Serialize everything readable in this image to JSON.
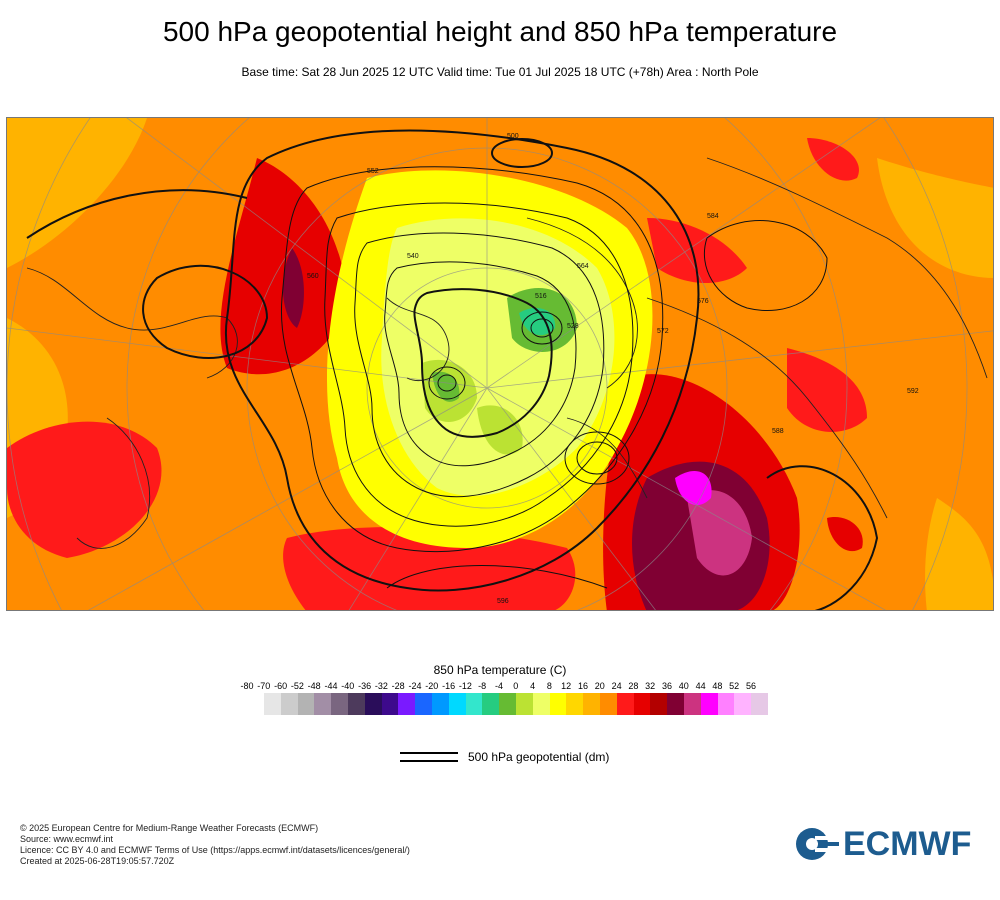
{
  "header": {
    "title": "500 hPa geopotential height and 850 hPa temperature",
    "subtitle": "Base time: Sat 28 Jun 2025 12 UTC Valid time: Tue 01 Jul 2025 18 UTC (+78h) Area : North Pole"
  },
  "map": {
    "contour_labels": [
      "500",
      "516",
      "528",
      "540",
      "552",
      "560",
      "564",
      "572",
      "576",
      "584",
      "588",
      "592",
      "596"
    ]
  },
  "legend": {
    "title": "850 hPa temperature (C)",
    "ticks": [
      "-80",
      "-70",
      "-60",
      "-52",
      "-48",
      "-44",
      "-40",
      "-36",
      "-32",
      "-28",
      "-24",
      "-20",
      "-16",
      "-12",
      "-8",
      "-4",
      "0",
      "4",
      "8",
      "12",
      "16",
      "20",
      "24",
      "28",
      "32",
      "36",
      "40",
      "44",
      "48",
      "52",
      "56"
    ],
    "colors": [
      "#e6e6e6",
      "#cccccc",
      "#b3b3b3",
      "#a28ea6",
      "#7a6680",
      "#4d3a5c",
      "#2a0d5a",
      "#3d0a8c",
      "#7a1aff",
      "#1a66ff",
      "#0099ff",
      "#00d9ff",
      "#33e6cc",
      "#26cc80",
      "#66bb33",
      "#bbe233",
      "#eeff66",
      "#ffff00",
      "#ffd700",
      "#ffb300",
      "#ff8c00",
      "#ff1a1a",
      "#e60000",
      "#b30000",
      "#800033",
      "#cc3380",
      "#ff00ff",
      "#ff80ff",
      "#ffb3ff",
      "#e6c8e6"
    ]
  },
  "geopotential_key": {
    "label": "500 hPa geopotential (dm)"
  },
  "footer": {
    "copyright": "© 2025 European Centre for Medium-Range Weather Forecasts (ECMWF)",
    "source": "Source: www.ecmwf.int",
    "licence": "Licence: CC BY 4.0 and ECMWF Terms of Use (https://apps.ecmwf.int/datasets/licences/general/)",
    "created": "Created at 2025-06-28T19:05:57.720Z"
  },
  "logo": {
    "text": "ECMWF",
    "color": "#1d5c8f"
  }
}
